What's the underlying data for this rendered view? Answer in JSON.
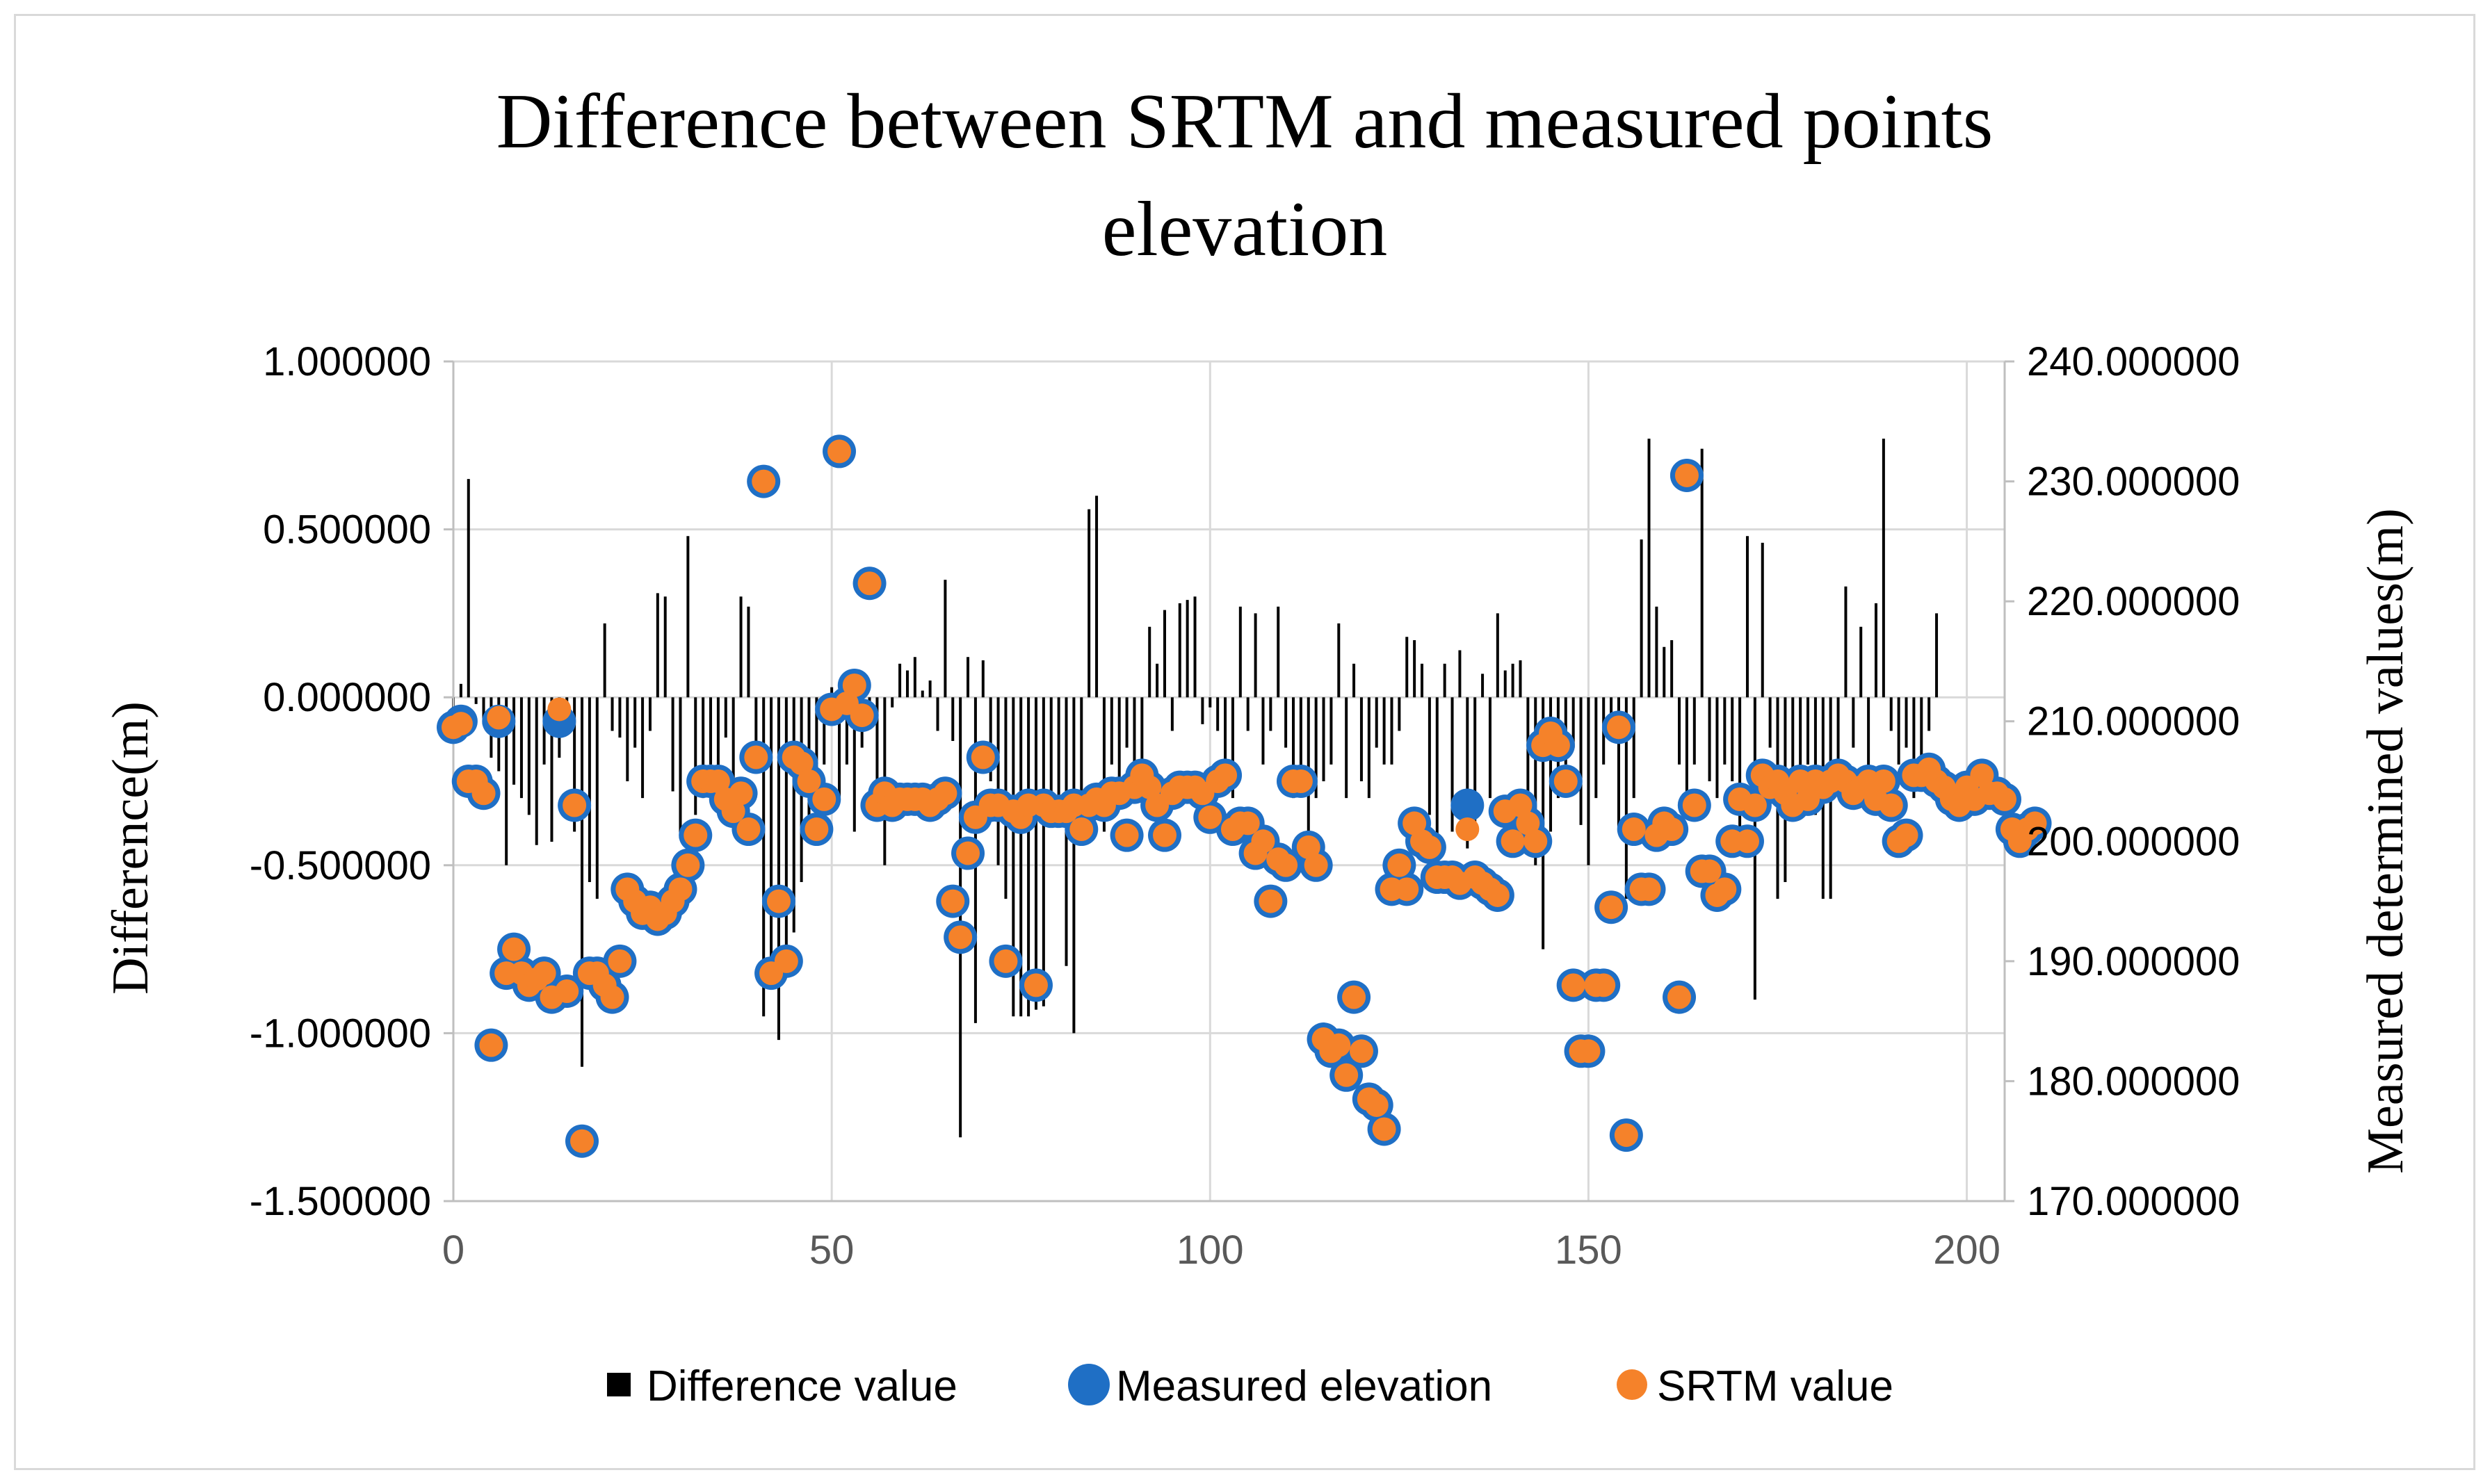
{
  "chart_data": {
    "type": "bar+scatter",
    "title_line1": "Difference between SRTM and measured points",
    "title_line2": "elevation",
    "xlabel": "",
    "ylabel_left": "Difference(m)",
    "ylabel_right": "Measured determined values(m)",
    "xlim": [
      0,
      205
    ],
    "ylim_left": [
      -1.5,
      1.0
    ],
    "ylim_right": [
      170,
      240
    ],
    "x_ticks": [
      0,
      50,
      100,
      150,
      200
    ],
    "x_tick_labels": [
      "0",
      "50",
      "100",
      "150",
      "200"
    ],
    "y_left_ticks": [
      1.0,
      0.5,
      0.0,
      -0.5,
      -1.0,
      -1.5
    ],
    "y_left_tick_labels": [
      "1.000000",
      "0.500000",
      "0.000000",
      "-0.500000",
      "-1.000000",
      "-1.500000"
    ],
    "y_right_ticks": [
      240,
      230,
      220,
      210,
      200,
      190,
      180,
      170
    ],
    "y_right_tick_labels": [
      "240.000000",
      "230.000000",
      "220.000000",
      "210.000000",
      "200.000000",
      "190.000000",
      "180.000000",
      "170.000000"
    ],
    "grid": true,
    "legend_position": "bottom",
    "colors": {
      "difference": "#000000",
      "measured": "#1f6fc5",
      "srtm": "#f5822a",
      "grid": "#d9d9d9",
      "axis": "#bfbfbf"
    },
    "series": [
      {
        "name": "Difference value",
        "axis": "left",
        "type": "bar",
        "values": [
          -0.05,
          0.04,
          0.65,
          -0.02,
          -0.08,
          -0.18,
          -0.22,
          -0.5,
          -0.26,
          -0.3,
          -0.35,
          -0.44,
          -0.2,
          -0.43,
          -0.18,
          -0.1,
          -0.4,
          -1.1,
          -0.55,
          -0.6,
          0.22,
          -0.1,
          -0.12,
          -0.25,
          -0.15,
          -0.3,
          -0.1,
          0.31,
          0.3,
          -0.28,
          -0.42,
          0.48,
          -0.35,
          -0.3,
          -0.2,
          -0.28,
          -0.12,
          -0.3,
          0.3,
          0.27,
          -0.15,
          -0.95,
          -0.85,
          -1.02,
          -0.8,
          -0.7,
          -0.55,
          -0.4,
          -0.35,
          -0.2,
          0.03,
          -0.3,
          -0.2,
          -0.4,
          -0.15,
          -0.03,
          -0.25,
          -0.5,
          -0.03,
          0.1,
          0.08,
          0.12,
          0.02,
          0.05,
          -0.1,
          0.35,
          -0.13,
          -1.31,
          0.12,
          -0.97,
          0.11,
          -0.25,
          -0.5,
          -0.6,
          -0.95,
          -0.95,
          -0.95,
          -0.93,
          -0.92,
          -0.3,
          -0.3,
          -0.8,
          -1.0,
          -0.35,
          0.56,
          0.6,
          -0.4,
          -0.2,
          -0.25,
          -0.15,
          -0.3,
          -0.2,
          0.21,
          0.1,
          0.26,
          -0.1,
          0.28,
          0.29,
          0.3,
          -0.08,
          -0.03,
          -0.1,
          -0.2,
          -0.3,
          0.27,
          -0.1,
          0.25,
          -0.2,
          -0.1,
          0.27,
          -0.15,
          -0.3,
          -0.25,
          -0.52,
          -0.3,
          -0.25,
          -0.2,
          0.22,
          -0.3,
          0.1,
          -0.25,
          -0.3,
          -0.15,
          -0.2,
          -0.2,
          -0.1,
          0.18,
          0.17,
          0.1,
          -0.35,
          -0.5,
          0.1,
          -0.4,
          0.14,
          -0.45,
          -0.4,
          0.07,
          -0.3,
          0.25,
          0.08,
          0.1,
          0.11,
          -0.45,
          -0.5,
          -0.75,
          -0.4,
          -0.3,
          -0.2,
          -0.15,
          -0.38,
          -0.5,
          -0.3,
          -0.2,
          -0.1,
          -0.4,
          -0.6,
          -0.3,
          0.47,
          0.77,
          0.27,
          0.15,
          0.17,
          -0.2,
          -0.3,
          -0.2,
          0.74,
          -0.25,
          -0.3,
          -0.2,
          -0.25,
          -0.4,
          0.48,
          -0.9,
          0.46,
          -0.15,
          -0.6,
          -0.55,
          -0.3,
          -0.3,
          -0.2,
          -0.35,
          -0.6,
          -0.6,
          -0.25,
          0.33,
          -0.15,
          0.21,
          -0.3,
          0.28,
          0.77,
          -0.1,
          -0.2,
          -0.15,
          -0.3,
          -0.25,
          -0.1,
          0.25
        ]
      },
      {
        "name": "Measured elevation",
        "axis": "right",
        "type": "scatter",
        "values": [
          209.5,
          210.0,
          205.0,
          205.0,
          204.0,
          183.0,
          210.0,
          189.0,
          191.0,
          189.0,
          188.0,
          188.5,
          189.0,
          187.0,
          210.0,
          187.5,
          203.0,
          175.0,
          189.0,
          189.0,
          188.0,
          187.0,
          190.0,
          196.0,
          195.0,
          194.0,
          194.5,
          193.5,
          194.0,
          195.0,
          196.0,
          198.0,
          200.5,
          205.0,
          205.0,
          205.0,
          203.5,
          202.5,
          204.0,
          201.0,
          207.0,
          230.0,
          189.0,
          195.0,
          190.0,
          207.0,
          206.5,
          205.0,
          201.0,
          203.5,
          211.0,
          232.5,
          211.5,
          213.0,
          210.5,
          221.5,
          203.0,
          204.0,
          203.0,
          203.5,
          203.5,
          203.5,
          203.5,
          203.0,
          203.5,
          204.0,
          195.0,
          192.0,
          199.0,
          202.0,
          207.0,
          203.0,
          203.0,
          190.0,
          202.5,
          202.0,
          203.0,
          188.0,
          203.0,
          202.5,
          202.5,
          202.5,
          203.0,
          201.0,
          203.0,
          203.5,
          203.0,
          204.0,
          204.0,
          200.5,
          204.5,
          205.5,
          204.5,
          203.0,
          200.5,
          204.0,
          204.5,
          204.5,
          204.5,
          204.0,
          202.0,
          205.0,
          205.5,
          201.0,
          201.5,
          201.5,
          199.0,
          200.0,
          195.0,
          198.5,
          198.0,
          205.0,
          205.0,
          199.5,
          198.0,
          183.5,
          182.5,
          183.0,
          180.5,
          187.0,
          182.5,
          178.5,
          178.0,
          176.0,
          196.0,
          198.0,
          196.0,
          201.5,
          200.0,
          199.5,
          197.0,
          197.0,
          197.0,
          196.5,
          203.0,
          197.0,
          196.5,
          196.0,
          195.5,
          202.5,
          200.0,
          203.0,
          201.5,
          200.0,
          208.0,
          209.0,
          208.0,
          205.0,
          188.0,
          182.5,
          182.5,
          188.0,
          188.0,
          194.5,
          209.5,
          175.5,
          201.0,
          196.0,
          196.0,
          200.5,
          201.5,
          201.0,
          187.0,
          230.5,
          203.0,
          197.5,
          197.5,
          195.5,
          196.0,
          200.0,
          203.5,
          200.0,
          203.0,
          205.5,
          204.5,
          205.0,
          204.0,
          203.0,
          205.0,
          203.5,
          205.0,
          204.5,
          205.0,
          205.5,
          205.0,
          204.0,
          204.5,
          205.0,
          203.5,
          205.0,
          203.0,
          200.0,
          200.5,
          205.5,
          205.5,
          206.0,
          205.0,
          204.5,
          203.5,
          203.0,
          204.5,
          203.5,
          205.5,
          204.0,
          204.0,
          203.5,
          201.0,
          200.0,
          201.0,
          201.5
        ]
      },
      {
        "name": "SRTM value",
        "axis": "right",
        "type": "scatter",
        "values": [
          209.5,
          209.8,
          205.0,
          205.0,
          204.0,
          183.0,
          210.3,
          189.0,
          191.0,
          189.0,
          188.0,
          188.5,
          189.0,
          187.0,
          211.0,
          187.5,
          203.0,
          175.0,
          189.0,
          189.0,
          188.0,
          187.0,
          190.0,
          196.0,
          195.0,
          194.0,
          194.5,
          193.5,
          194.0,
          195.0,
          196.0,
          198.0,
          200.5,
          205.0,
          205.0,
          205.0,
          203.5,
          202.5,
          204.0,
          201.0,
          207.0,
          230.0,
          189.0,
          195.0,
          190.0,
          207.0,
          206.5,
          205.0,
          201.0,
          203.5,
          211.0,
          232.5,
          211.5,
          213.0,
          210.5,
          221.5,
          203.0,
          204.0,
          203.0,
          203.5,
          203.5,
          203.5,
          203.5,
          203.0,
          203.5,
          204.0,
          195.0,
          192.0,
          199.0,
          202.0,
          207.0,
          203.0,
          203.0,
          190.0,
          202.5,
          202.0,
          203.0,
          188.0,
          203.0,
          202.5,
          202.5,
          202.5,
          203.0,
          201.0,
          203.0,
          203.5,
          203.0,
          204.0,
          204.0,
          200.5,
          204.5,
          205.5,
          204.5,
          203.0,
          200.5,
          204.0,
          204.5,
          204.5,
          204.5,
          204.0,
          202.0,
          205.0,
          205.5,
          201.0,
          201.5,
          201.5,
          199.0,
          200.0,
          195.0,
          198.5,
          198.0,
          205.0,
          205.0,
          199.5,
          198.0,
          183.5,
          182.5,
          183.0,
          180.5,
          187.0,
          182.5,
          178.5,
          178.0,
          176.0,
          196.0,
          198.0,
          196.0,
          201.5,
          200.0,
          199.5,
          197.0,
          197.0,
          197.0,
          196.5,
          201.0,
          197.0,
          196.5,
          196.0,
          195.5,
          202.5,
          200.0,
          203.0,
          201.5,
          200.0,
          208.0,
          209.0,
          208.0,
          205.0,
          188.0,
          182.5,
          182.5,
          188.0,
          188.0,
          194.5,
          209.5,
          175.5,
          201.0,
          196.0,
          196.0,
          200.5,
          201.5,
          201.0,
          187.0,
          230.5,
          203.0,
          197.5,
          197.5,
          195.5,
          196.0,
          200.0,
          203.5,
          200.0,
          203.0,
          205.5,
          204.5,
          205.0,
          204.0,
          203.0,
          205.0,
          203.5,
          205.0,
          204.5,
          205.0,
          205.5,
          205.0,
          204.0,
          204.5,
          205.0,
          203.5,
          205.0,
          203.0,
          200.0,
          200.5,
          205.5,
          205.5,
          206.0,
          205.0,
          204.5,
          203.5,
          203.0,
          204.5,
          203.5,
          205.5,
          204.0,
          204.0,
          203.5,
          201.0,
          200.0,
          201.0,
          201.5
        ]
      }
    ]
  },
  "legend": {
    "items": [
      {
        "label": "Difference value",
        "shape": "square",
        "color": "#000000"
      },
      {
        "label": "Measured elevation",
        "shape": "circle",
        "color": "#1f6fc5"
      },
      {
        "label": "SRTM value",
        "shape": "circle",
        "color": "#f5822a"
      }
    ]
  }
}
